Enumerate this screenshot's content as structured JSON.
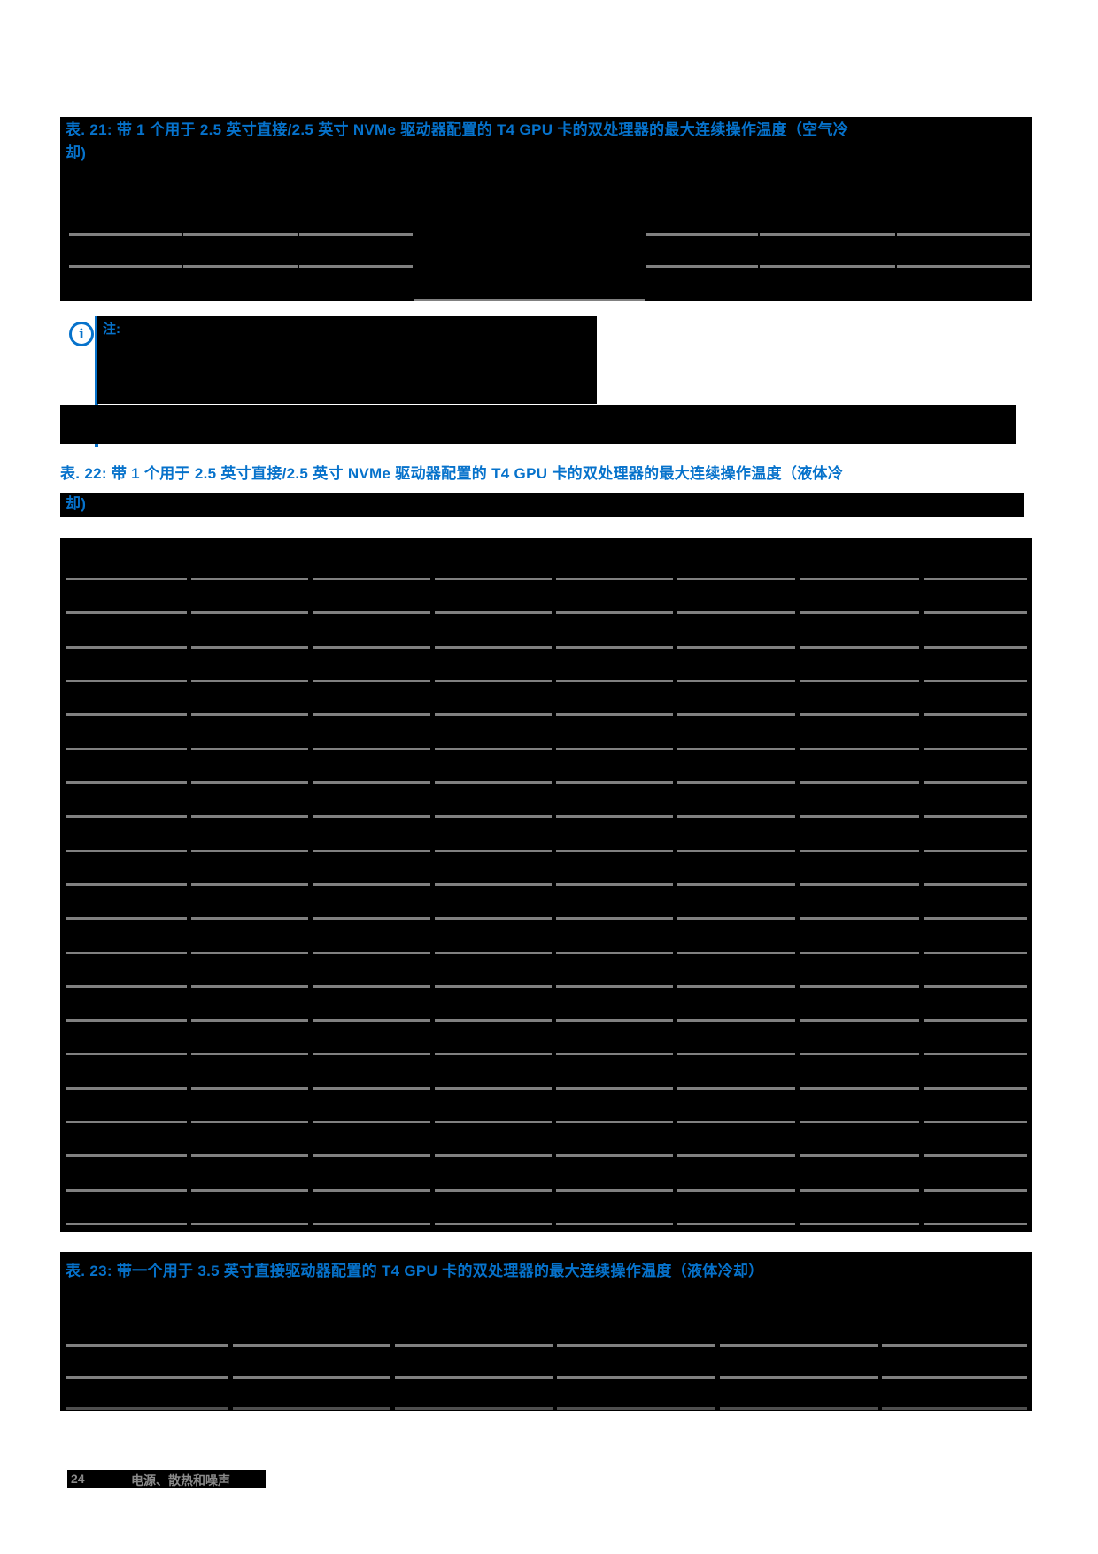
{
  "colors": {
    "accent_blue": "#0672cb",
    "rule_gray": "#808080",
    "rule_dark": "#4f4f4f",
    "redaction_black": "#000000",
    "footer_gray": "#8a8a8a",
    "page_bg": "#ffffff"
  },
  "table21": {
    "caption_line1": "表. 21: 带 1 个用于 2.5 英寸直接/2.5 英寸 NVMe 驱动器配置的 T4 GPU 卡的双处理器的最大连续操作温度（空气冷",
    "caption_line2": "却)"
  },
  "note": {
    "icon": "info-icon",
    "label": "注:"
  },
  "table22": {
    "caption_line1": "表. 22: 带 1 个用于 2.5 英寸直接/2.5 英寸 NVMe 驱动器配置的 T4 GPU 卡的双处理器的最大连续操作温度（液体冷",
    "caption_line2": "却)"
  },
  "table23": {
    "caption": "表. 23: 带一个用于 3.5 英寸直接驱动器配置的 T4 GPU 卡的双处理器的最大连续操作温度（液体冷却）"
  },
  "footer": {
    "page_number": "24",
    "section_title": "电源、散热和噪声"
  }
}
